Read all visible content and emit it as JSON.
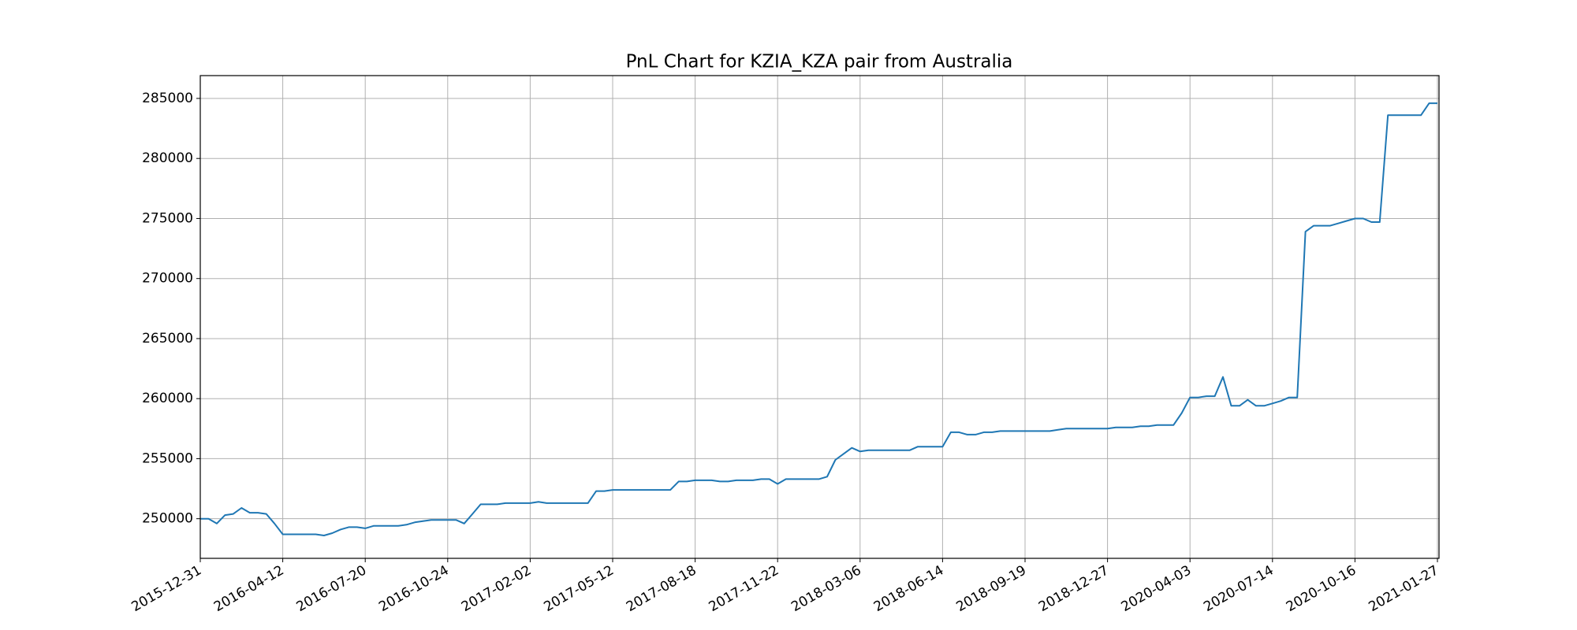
{
  "chart_data": {
    "type": "line",
    "title": "PnL Chart for KZIA_KZA pair from Australia",
    "categories": [
      "2015-12-31",
      null,
      null,
      null,
      null,
      null,
      null,
      null,
      null,
      null,
      "2016-04-12",
      null,
      null,
      null,
      null,
      null,
      null,
      null,
      null,
      null,
      "2016-07-20",
      null,
      null,
      null,
      null,
      null,
      null,
      null,
      null,
      null,
      "2016-10-24",
      null,
      null,
      null,
      null,
      null,
      null,
      null,
      null,
      null,
      "2017-02-02",
      null,
      null,
      null,
      null,
      null,
      null,
      null,
      null,
      null,
      "2017-05-12",
      null,
      null,
      null,
      null,
      null,
      null,
      null,
      null,
      null,
      "2017-08-18",
      null,
      null,
      null,
      null,
      null,
      null,
      null,
      null,
      null,
      "2017-11-22",
      null,
      null,
      null,
      null,
      null,
      null,
      null,
      null,
      null,
      "2018-03-06",
      null,
      null,
      null,
      null,
      null,
      null,
      null,
      null,
      null,
      "2018-06-14",
      null,
      null,
      null,
      null,
      null,
      null,
      null,
      null,
      null,
      "2018-09-19",
      null,
      null,
      null,
      null,
      null,
      null,
      null,
      null,
      null,
      "2018-12-27",
      null,
      null,
      null,
      null,
      null,
      null,
      null,
      null,
      null,
      "2020-04-03",
      null,
      null,
      null,
      null,
      null,
      null,
      null,
      null,
      null,
      "2020-07-14",
      null,
      null,
      null,
      null,
      null,
      null,
      null,
      null,
      null,
      "2020-10-16",
      null,
      null,
      null,
      null,
      null,
      null,
      null,
      null,
      null,
      "2021-01-27"
    ],
    "values": [
      250000,
      250000,
      249600,
      250300,
      250400,
      250900,
      250500,
      250500,
      250400,
      249600,
      248700,
      248700,
      248700,
      248700,
      248700,
      248600,
      248800,
      249100,
      249300,
      249300,
      249200,
      249400,
      249400,
      249400,
      249400,
      249500,
      249700,
      249800,
      249900,
      249900,
      249900,
      249900,
      249600,
      250400,
      251200,
      251200,
      251200,
      251300,
      251300,
      251300,
      251300,
      251400,
      251300,
      251300,
      251300,
      251300,
      251300,
      251300,
      252300,
      252300,
      252400,
      252400,
      252400,
      252400,
      252400,
      252400,
      252400,
      252400,
      253100,
      253100,
      253200,
      253200,
      253200,
      253100,
      253100,
      253200,
      253200,
      253200,
      253300,
      253300,
      252900,
      253300,
      253300,
      253300,
      253300,
      253300,
      253500,
      254900,
      255400,
      255900,
      255600,
      255700,
      255700,
      255700,
      255700,
      255700,
      255700,
      256000,
      256000,
      256000,
      256000,
      257200,
      257200,
      257000,
      257000,
      257200,
      257200,
      257300,
      257300,
      257300,
      257300,
      257300,
      257300,
      257300,
      257400,
      257500,
      257500,
      257500,
      257500,
      257500,
      257500,
      257600,
      257600,
      257600,
      257700,
      257700,
      257800,
      257800,
      257800,
      258800,
      260100,
      260100,
      260200,
      260200,
      261800,
      259400,
      259400,
      259900,
      259400,
      259400,
      259600,
      259800,
      260100,
      260100,
      273900,
      274400,
      274400,
      274400,
      274600,
      274800,
      275000,
      275000,
      274700,
      274700,
      283600,
      283600,
      283600,
      283600,
      283600,
      284600,
      284600
    ],
    "color": "#1f77b4",
    "ylim": [
      246700,
      286900
    ],
    "yticks": [
      250000,
      255000,
      260000,
      265000,
      270000,
      275000,
      280000,
      285000
    ],
    "grid": true
  }
}
